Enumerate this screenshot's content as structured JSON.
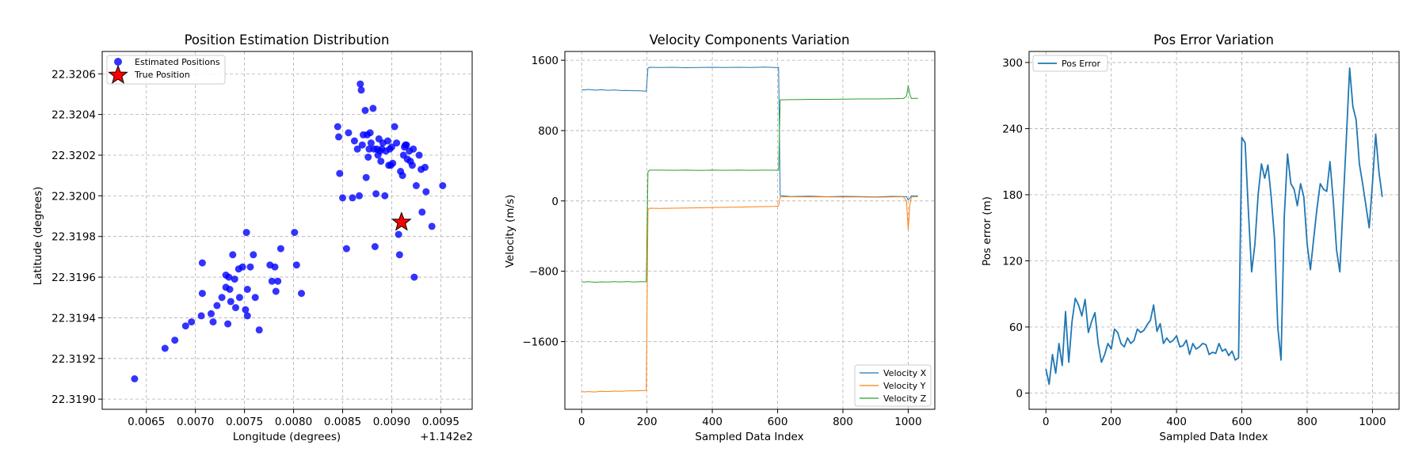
{
  "chart_data": [
    {
      "type": "scatter",
      "title": "Position Estimation Distribution",
      "xlabel": "Longitude (degrees)",
      "ylabel": "Latitude (degrees)",
      "x_offset_label": "+1.142e2",
      "xlim": [
        0.00605,
        0.00982
      ],
      "ylim": [
        22.31895,
        22.32071
      ],
      "xticks": [
        0.0065,
        0.007,
        0.0075,
        0.008,
        0.0085,
        0.009,
        0.0095
      ],
      "xtick_labels": [
        "0.0065",
        "0.0070",
        "0.0075",
        "0.0080",
        "0.0085",
        "0.0090",
        "0.0095"
      ],
      "yticks": [
        22.319,
        22.3192,
        22.3194,
        22.3196,
        22.3198,
        22.32,
        22.3202,
        22.3204,
        22.3206
      ],
      "ytick_labels": [
        "22.3190",
        "22.3192",
        "22.3194",
        "22.3196",
        "22.3198",
        "22.3200",
        "22.3202",
        "22.3204",
        "22.3206"
      ],
      "grid": true,
      "legend_position": "top-left",
      "colors": {
        "estimated": "#0000ff",
        "true": "#ff0000"
      },
      "series": [
        {
          "name": "Estimated Positions",
          "marker": "circle",
          "x": [
            0.00638,
            0.00669,
            0.00679,
            0.0069,
            0.00696,
            0.00706,
            0.00707,
            0.00707,
            0.00716,
            0.00718,
            0.00722,
            0.00727,
            0.00731,
            0.00731,
            0.00733,
            0.00734,
            0.00735,
            0.00736,
            0.00738,
            0.0074,
            0.00741,
            0.00744,
            0.00745,
            0.00748,
            0.00751,
            0.00752,
            0.00753,
            0.00753,
            0.00756,
            0.00759,
            0.00761,
            0.00765,
            0.00776,
            0.00778,
            0.00781,
            0.00782,
            0.00784,
            0.00787,
            0.00801,
            0.00803,
            0.00808,
            0.00845,
            0.00846,
            0.00847,
            0.0085,
            0.00854,
            0.00856,
            0.0086,
            0.00862,
            0.00865,
            0.00867,
            0.00868,
            0.00869,
            0.0087,
            0.00871,
            0.00873,
            0.00874,
            0.00875,
            0.00876,
            0.00877,
            0.00878,
            0.00879,
            0.00881,
            0.00882,
            0.00883,
            0.00884,
            0.00885,
            0.00886,
            0.00887,
            0.00888,
            0.00889,
            0.0089,
            0.00891,
            0.00893,
            0.00894,
            0.00896,
            0.00897,
            0.00898,
            0.00899,
            0.009,
            0.00901,
            0.00903,
            0.00905,
            0.00907,
            0.00908,
            0.00909,
            0.00911,
            0.00912,
            0.00913,
            0.00914,
            0.00915,
            0.00916,
            0.00918,
            0.00919,
            0.00921,
            0.00922,
            0.00923,
            0.00925,
            0.00928,
            0.0093,
            0.00931,
            0.00934,
            0.00935,
            0.00941,
            0.00952
          ],
          "y": [
            22.3191,
            22.31925,
            22.31929,
            22.31936,
            22.31938,
            22.31941,
            22.31952,
            22.31967,
            22.31942,
            22.31938,
            22.31946,
            22.3195,
            22.31961,
            22.31955,
            22.31937,
            22.3196,
            22.31954,
            22.31948,
            22.31971,
            22.31959,
            22.31945,
            22.31964,
            22.3195,
            22.31965,
            22.31944,
            22.31982,
            22.31954,
            22.31941,
            22.31965,
            22.31971,
            22.3195,
            22.31934,
            22.31966,
            22.31958,
            22.31965,
            22.31953,
            22.31958,
            22.31974,
            22.31982,
            22.31966,
            22.31952,
            22.32034,
            22.32029,
            22.32011,
            22.31999,
            22.31974,
            22.32031,
            22.31999,
            22.32027,
            22.32023,
            22.32,
            22.32055,
            22.32052,
            22.32025,
            22.3203,
            22.32042,
            22.32009,
            22.3203,
            22.32019,
            22.32023,
            22.32031,
            22.32026,
            22.32043,
            22.32023,
            22.31975,
            22.32001,
            22.32023,
            22.3202,
            22.32028,
            22.32022,
            22.32017,
            22.32023,
            22.32026,
            22.32,
            22.32022,
            22.32027,
            22.32015,
            22.32023,
            22.32015,
            22.32024,
            22.32016,
            22.32034,
            22.32026,
            22.31981,
            22.31971,
            22.32012,
            22.3201,
            22.3202,
            22.32024,
            22.32025,
            22.32025,
            22.32018,
            22.32022,
            22.32017,
            22.32015,
            22.32023,
            22.3196,
            22.32005,
            22.3202,
            22.32013,
            22.31992,
            22.32014,
            22.32002,
            22.31985,
            22.32005
          ]
        },
        {
          "name": "True Position",
          "marker": "star",
          "x": [
            0.0091
          ],
          "y": [
            22.31987
          ]
        }
      ]
    },
    {
      "type": "line",
      "title": "Velocity Components Variation",
      "xlabel": "Sampled Data Index",
      "ylabel": "Velocity (m/s)",
      "xlim": [
        -51.5,
        1081.5
      ],
      "ylim": [
        -2370,
        1700
      ],
      "xticks": [
        0,
        200,
        400,
        600,
        800,
        1000
      ],
      "xtick_labels": [
        "0",
        "200",
        "400",
        "600",
        "800",
        "1000"
      ],
      "yticks": [
        -1600,
        -800,
        0,
        800,
        1600
      ],
      "ytick_labels": [
        "−1600",
        "−800",
        "0",
        "800",
        "1600"
      ],
      "grid": true,
      "legend_position": "bottom-right",
      "series": [
        {
          "name": "Velocity X",
          "color": "#1f77b4",
          "x": [
            0,
            10,
            20,
            40,
            60,
            80,
            100,
            120,
            140,
            160,
            180,
            198,
            203,
            208,
            240,
            280,
            320,
            360,
            400,
            440,
            480,
            520,
            560,
            590,
            600,
            603,
            608,
            640,
            700,
            750,
            800,
            850,
            900,
            950,
            985,
            995,
            1000,
            1005,
            1010,
            1020,
            1030
          ],
          "y": [
            1265,
            1262,
            1268,
            1260,
            1264,
            1258,
            1262,
            1255,
            1256,
            1253,
            1252,
            1248,
            1510,
            1520,
            1518,
            1520,
            1515,
            1518,
            1520,
            1517,
            1520,
            1518,
            1522,
            1518,
            1518,
            1520,
            60,
            50,
            55,
            48,
            52,
            50,
            45,
            52,
            50,
            48,
            10,
            30,
            60,
            55,
            60
          ]
        },
        {
          "name": "Velocity Y",
          "color": "#ff7f0e",
          "x": [
            0,
            10,
            20,
            40,
            60,
            80,
            100,
            120,
            140,
            160,
            180,
            198,
            203,
            208,
            240,
            280,
            320,
            360,
            400,
            440,
            480,
            520,
            560,
            590,
            600,
            603,
            608,
            640,
            700,
            750,
            800,
            850,
            900,
            950,
            985,
            995,
            1000,
            1005,
            1010,
            1020,
            1030
          ],
          "y": [
            -2170,
            -2172,
            -2168,
            -2173,
            -2165,
            -2168,
            -2163,
            -2165,
            -2160,
            -2161,
            -2158,
            -2156,
            -100,
            -83,
            -85,
            -83,
            -80,
            -78,
            -75,
            -73,
            -70,
            -68,
            -65,
            -62,
            -60,
            -55,
            45,
            48,
            45,
            47,
            44,
            45,
            42,
            45,
            48,
            0,
            -330,
            -50,
            45,
            48,
            50
          ]
        },
        {
          "name": "Velocity Z",
          "color": "#2ca02c",
          "x": [
            0,
            10,
            20,
            40,
            60,
            80,
            100,
            120,
            140,
            160,
            180,
            198,
            203,
            208,
            240,
            280,
            320,
            360,
            400,
            440,
            480,
            520,
            560,
            590,
            600,
            603,
            608,
            640,
            700,
            750,
            800,
            850,
            900,
            950,
            985,
            995,
            1000,
            1005,
            1010,
            1020,
            1030
          ],
          "y": [
            -920,
            -922,
            -918,
            -925,
            -920,
            -923,
            -918,
            -921,
            -917,
            -922,
            -918,
            -920,
            330,
            350,
            350,
            348,
            350,
            347,
            350,
            348,
            350,
            348,
            350,
            349,
            348,
            350,
            1150,
            1152,
            1155,
            1155,
            1158,
            1160,
            1160,
            1162,
            1165,
            1190,
            1310,
            1210,
            1165,
            1168,
            1165
          ]
        }
      ]
    },
    {
      "type": "line",
      "title": "Pos Error Variation",
      "xlabel": "Sampled Data Index",
      "ylabel": "Pos error (m)",
      "xlim": [
        -51.5,
        1081.5
      ],
      "ylim": [
        -14.7,
        310
      ],
      "xticks": [
        0,
        200,
        400,
        600,
        800,
        1000
      ],
      "xtick_labels": [
        "0",
        "200",
        "400",
        "600",
        "800",
        "1000"
      ],
      "yticks": [
        0,
        60,
        120,
        180,
        240,
        300
      ],
      "ytick_labels": [
        "0",
        "60",
        "120",
        "180",
        "240",
        "300"
      ],
      "grid": true,
      "legend_position": "top-left",
      "series": [
        {
          "name": "Pos Error",
          "color": "#1f77b4",
          "x": [
            0,
            10,
            20,
            30,
            40,
            50,
            60,
            70,
            80,
            90,
            100,
            110,
            120,
            130,
            140,
            150,
            160,
            170,
            180,
            190,
            200,
            210,
            220,
            230,
            240,
            250,
            260,
            270,
            280,
            290,
            300,
            310,
            320,
            330,
            340,
            350,
            360,
            370,
            380,
            390,
            400,
            410,
            420,
            430,
            440,
            450,
            460,
            470,
            480,
            490,
            500,
            510,
            520,
            530,
            540,
            550,
            560,
            570,
            580,
            590,
            600,
            610,
            620,
            630,
            640,
            650,
            660,
            670,
            680,
            690,
            700,
            710,
            720,
            730,
            740,
            750,
            760,
            770,
            780,
            790,
            800,
            810,
            820,
            830,
            840,
            850,
            860,
            870,
            880,
            890,
            900,
            910,
            920,
            930,
            940,
            950,
            960,
            970,
            980,
            990,
            1000,
            1010,
            1020,
            1030
          ],
          "y": [
            22,
            8,
            35,
            18,
            45,
            25,
            74,
            28,
            65,
            86,
            80,
            70,
            85,
            55,
            65,
            73,
            45,
            28,
            35,
            45,
            40,
            58,
            55,
            45,
            42,
            50,
            45,
            48,
            58,
            55,
            57,
            62,
            66,
            80,
            56,
            63,
            45,
            50,
            46,
            48,
            52,
            42,
            43,
            48,
            35,
            45,
            40,
            42,
            45,
            44,
            35,
            37,
            36,
            45,
            38,
            40,
            34,
            38,
            30,
            32,
            232,
            227,
            165,
            110,
            135,
            180,
            208,
            195,
            207,
            178,
            140,
            60,
            30,
            160,
            217,
            190,
            185,
            170,
            190,
            178,
            135,
            112,
            140,
            167,
            190,
            185,
            183,
            210,
            175,
            130,
            110,
            170,
            230,
            295,
            260,
            248,
            208,
            190,
            170,
            150,
            190,
            235,
            200,
            178
          ]
        }
      ]
    }
  ]
}
